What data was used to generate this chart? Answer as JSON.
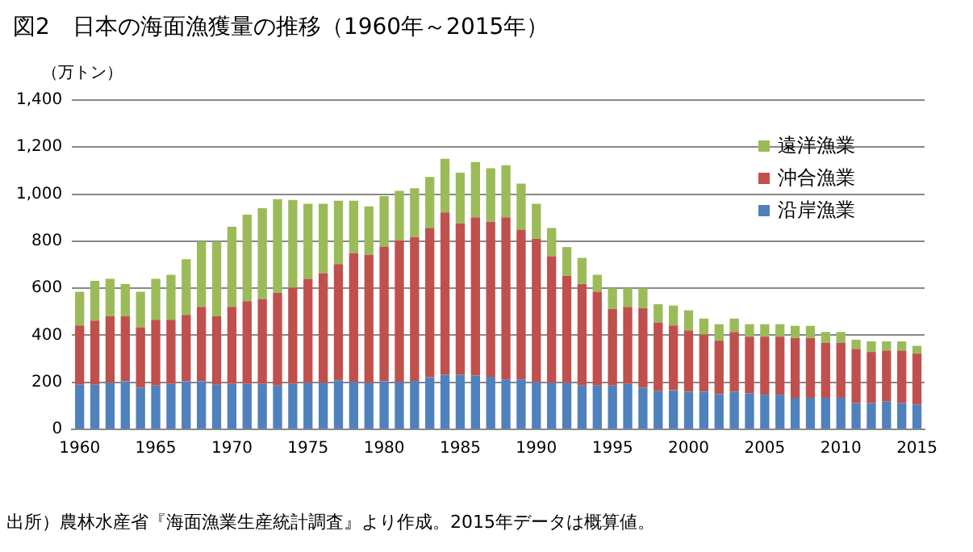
{
  "chart_data": {
    "type": "bar",
    "title": "図2　日本の海面漁獲量の推移（1960年～2015年）",
    "ylabel": "（万トン）",
    "annotations": [
      "出所）農林水産省『海面漁業生産統計調査』より作成。2015年データは概算値。"
    ],
    "categories": [
      "1960",
      null,
      null,
      null,
      null,
      "1965",
      null,
      null,
      null,
      null,
      "1970",
      null,
      null,
      null,
      null,
      "1975",
      null,
      null,
      null,
      null,
      "1980",
      null,
      null,
      null,
      null,
      "1985",
      null,
      null,
      null,
      null,
      "1990",
      null,
      null,
      null,
      null,
      "1995",
      null,
      null,
      null,
      null,
      "2000",
      null,
      null,
      null,
      null,
      "2005",
      null,
      null,
      null,
      null,
      "2010",
      null,
      null,
      null,
      null,
      "2015"
    ],
    "stacked": true,
    "legend": "top right",
    "grid": "y",
    "ylim": [
      0,
      1400
    ],
    "yticks": [
      0,
      200,
      400,
      600,
      800,
      {
        "value": 1000,
        "label": "1,000"
      },
      {
        "value": 1200,
        "label": "1,200"
      },
      {
        "value": 1400,
        "label": "1,400"
      }
    ],
    "series": [
      {
        "name": "沿岸漁業",
        "color": "#4f81bd",
        "values": [
          190,
          190,
          197,
          204,
          177,
          186,
          193,
          204,
          204,
          190,
          193,
          193,
          193,
          186,
          193,
          197,
          197,
          208,
          201,
          197,
          204,
          201,
          206,
          221,
          232,
          232,
          228,
          223,
          212,
          212,
          201,
          197,
          197,
          186,
          186,
          186,
          193,
          177,
          162,
          166,
          160,
          160,
          149,
          160,
          153,
          147,
          147,
          134,
          134,
          134,
          134,
          112,
          112,
          118,
          112,
          105
        ]
      },
      {
        "name": "沖合漁業",
        "color": "#c0504d",
        "values": [
          252,
          272,
          283,
          276,
          257,
          280,
          273,
          282,
          317,
          290,
          328,
          352,
          361,
          394,
          409,
          443,
          467,
          495,
          548,
          545,
          573,
          603,
          611,
          635,
          690,
          644,
          674,
          660,
          690,
          636,
          609,
          539,
          456,
          432,
          399,
          326,
          328,
          338,
          293,
          276,
          260,
          243,
          228,
          254,
          241,
          247,
          247,
          254,
          254,
          234,
          234,
          230,
          217,
          217,
          223,
          217
        ]
      },
      {
        "name": "遠洋漁業",
        "color": "#9bbb59",
        "values": [
          143,
          169,
          160,
          138,
          151,
          174,
          191,
          237,
          278,
          319,
          340,
          368,
          386,
          399,
          373,
          319,
          295,
          269,
          223,
          206,
          215,
          210,
          208,
          217,
          228,
          215,
          235,
          227,
          221,
          197,
          149,
          120,
          122,
          111,
          72,
          88,
          79,
          85,
          77,
          84,
          86,
          68,
          70,
          57,
          53,
          53,
          53,
          52,
          52,
          46,
          46,
          39,
          45,
          39,
          39,
          33
        ]
      }
    ]
  }
}
